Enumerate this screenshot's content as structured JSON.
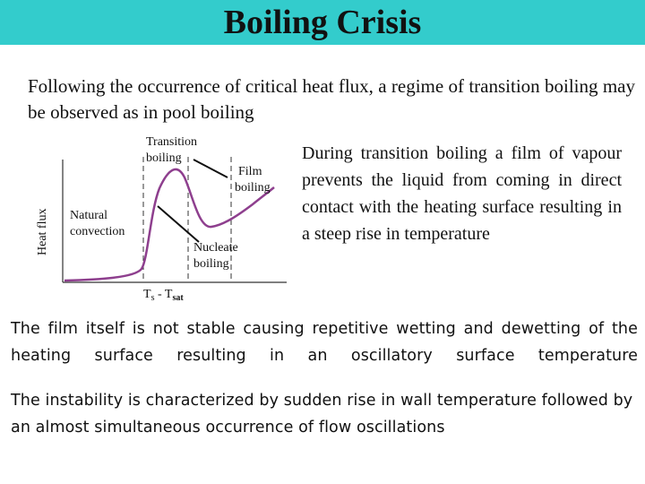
{
  "header": {
    "title": "Boiling Crisis"
  },
  "intro_text": "Following the occurrence of critical heat flux, a regime of transition boiling may be observed as in pool boiling",
  "diagram": {
    "y_axis_label": "Heat flux",
    "x_axis_label_main": "T",
    "x_axis_label_sub1": "s",
    "x_axis_label_mid": " - T",
    "x_axis_label_sub2": "sat",
    "regions": {
      "natural_convection": [
        "Natural",
        "convection"
      ],
      "nucleate_boiling": [
        "Nucleate",
        "boiling"
      ],
      "transition_boiling": [
        "Transition",
        "boiling"
      ],
      "film_boiling": [
        "Film",
        "boiling"
      ]
    },
    "curve_color": "#8e3f8e"
  },
  "side_text": "During transition boiling a film of vapour prevents the liquid from coming in direct contact with the heating surface resulting in a steep rise in temperature",
  "paragraphs": [
    "The film itself is not stable causing repetitive wetting and dewetting of the heating surface resulting in an oscillatory surface temperature",
    "The instability is characterized by sudden rise in wall temperature followed by an almost simultaneous occurrence of flow oscillations"
  ],
  "colors": {
    "title_bar": "#33cccc",
    "text": "#111111"
  }
}
